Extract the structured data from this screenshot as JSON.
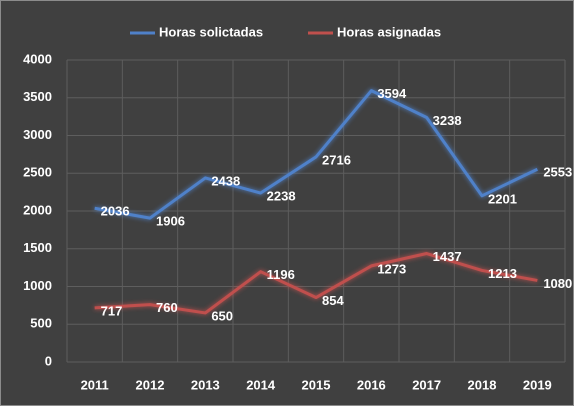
{
  "chart_data": {
    "type": "line",
    "categories": [
      "2011",
      "2012",
      "2013",
      "2014",
      "2015",
      "2016",
      "2017",
      "2018",
      "2019"
    ],
    "series": [
      {
        "name": "Horas solictadas",
        "color": "#4f81c9",
        "values": [
          2036,
          1906,
          2438,
          2238,
          2716,
          3594,
          3238,
          2201,
          2553
        ]
      },
      {
        "name": "Horas asignadas",
        "color": "#c0504d",
        "values": [
          717,
          760,
          650,
          1196,
          854,
          1273,
          1437,
          1213,
          1080
        ]
      }
    ],
    "ylim": [
      0,
      4000
    ],
    "yticks": [
      0,
      500,
      1000,
      1500,
      2000,
      2500,
      3000,
      3500,
      4000
    ],
    "grid": true,
    "legend": "top",
    "data_labels": true
  }
}
